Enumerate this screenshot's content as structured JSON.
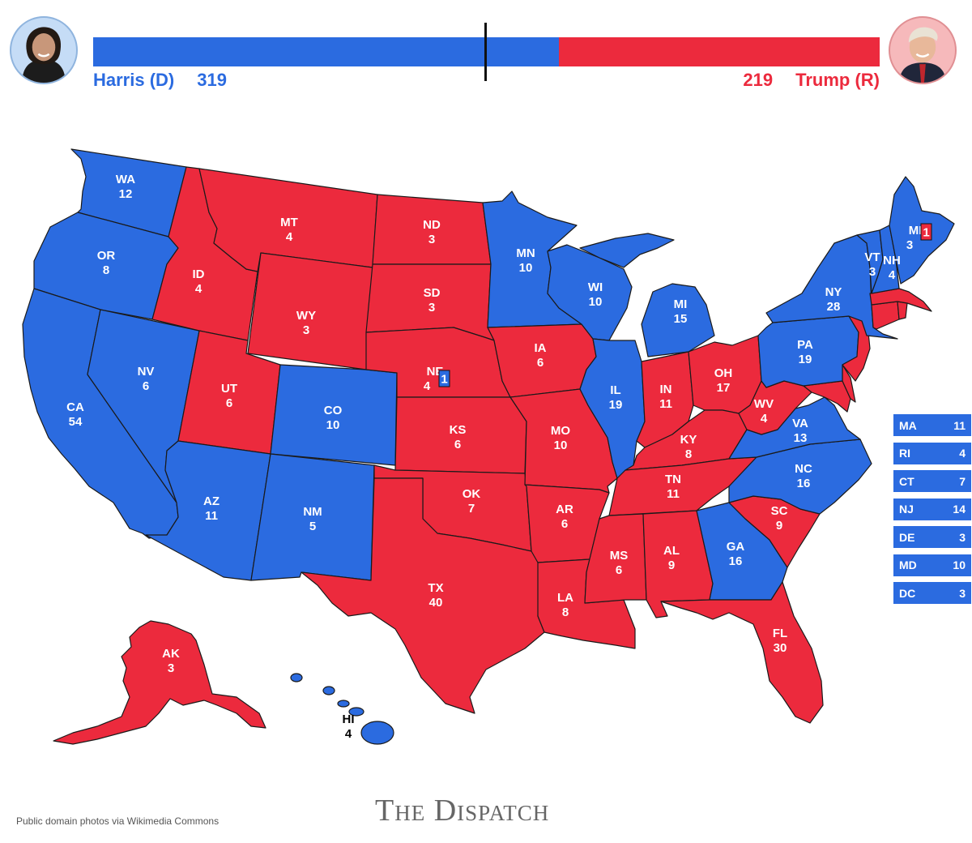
{
  "colors": {
    "dem": "#2b6be0",
    "rep": "#ec2a3d",
    "border": "#1a1a1a"
  },
  "header": {
    "dem": {
      "name": "Harris (D)",
      "votes": "319"
    },
    "rep": {
      "name": "Trump (R)",
      "votes": "219"
    },
    "dem_share": 0.593,
    "threshold_votes": 270
  },
  "states": {
    "WA": {
      "abbr": "WA",
      "ev": "12",
      "party": "D"
    },
    "OR": {
      "abbr": "OR",
      "ev": "8",
      "party": "D"
    },
    "CA": {
      "abbr": "CA",
      "ev": "54",
      "party": "D"
    },
    "NV": {
      "abbr": "NV",
      "ev": "6",
      "party": "D"
    },
    "ID": {
      "abbr": "ID",
      "ev": "4",
      "party": "R"
    },
    "MT": {
      "abbr": "MT",
      "ev": "4",
      "party": "R"
    },
    "WY": {
      "abbr": "WY",
      "ev": "3",
      "party": "R"
    },
    "UT": {
      "abbr": "UT",
      "ev": "6",
      "party": "R"
    },
    "CO": {
      "abbr": "CO",
      "ev": "10",
      "party": "D"
    },
    "AZ": {
      "abbr": "AZ",
      "ev": "11",
      "party": "D"
    },
    "NM": {
      "abbr": "NM",
      "ev": "5",
      "party": "D"
    },
    "ND": {
      "abbr": "ND",
      "ev": "3",
      "party": "R"
    },
    "SD": {
      "abbr": "SD",
      "ev": "3",
      "party": "R"
    },
    "NE": {
      "abbr": "NE",
      "ev": "4",
      "party": "R",
      "split": "1"
    },
    "KS": {
      "abbr": "KS",
      "ev": "6",
      "party": "R"
    },
    "OK": {
      "abbr": "OK",
      "ev": "7",
      "party": "R"
    },
    "TX": {
      "abbr": "TX",
      "ev": "40",
      "party": "R"
    },
    "MN": {
      "abbr": "MN",
      "ev": "10",
      "party": "D"
    },
    "IA": {
      "abbr": "IA",
      "ev": "6",
      "party": "R"
    },
    "MO": {
      "abbr": "MO",
      "ev": "10",
      "party": "R"
    },
    "AR": {
      "abbr": "AR",
      "ev": "6",
      "party": "R"
    },
    "LA": {
      "abbr": "LA",
      "ev": "8",
      "party": "R"
    },
    "WI": {
      "abbr": "WI",
      "ev": "10",
      "party": "D"
    },
    "IL": {
      "abbr": "IL",
      "ev": "19",
      "party": "D"
    },
    "MI": {
      "abbr": "MI",
      "ev": "15",
      "party": "D"
    },
    "IN": {
      "abbr": "IN",
      "ev": "11",
      "party": "R"
    },
    "OH": {
      "abbr": "OH",
      "ev": "17",
      "party": "R"
    },
    "KY": {
      "abbr": "KY",
      "ev": "8",
      "party": "R"
    },
    "TN": {
      "abbr": "TN",
      "ev": "11",
      "party": "R"
    },
    "MS": {
      "abbr": "MS",
      "ev": "6",
      "party": "R"
    },
    "AL": {
      "abbr": "AL",
      "ev": "9",
      "party": "R"
    },
    "GA": {
      "abbr": "GA",
      "ev": "16",
      "party": "D"
    },
    "FL": {
      "abbr": "FL",
      "ev": "30",
      "party": "R"
    },
    "SC": {
      "abbr": "SC",
      "ev": "9",
      "party": "R"
    },
    "NC": {
      "abbr": "NC",
      "ev": "16",
      "party": "D"
    },
    "VA": {
      "abbr": "VA",
      "ev": "13",
      "party": "D"
    },
    "WV": {
      "abbr": "WV",
      "ev": "4",
      "party": "R"
    },
    "PA": {
      "abbr": "PA",
      "ev": "19",
      "party": "D"
    },
    "NY": {
      "abbr": "NY",
      "ev": "28",
      "party": "D"
    },
    "VT": {
      "abbr": "VT",
      "ev": "3",
      "party": "D"
    },
    "NH": {
      "abbr": "NH",
      "ev": "4",
      "party": "D"
    },
    "ME": {
      "abbr": "ME",
      "ev": "3",
      "party": "D",
      "split": "1"
    },
    "AK": {
      "abbr": "AK",
      "ev": "3",
      "party": "R"
    },
    "HI": {
      "abbr": "HI",
      "ev": "4",
      "party": "D"
    }
  },
  "small_states": [
    {
      "abbr": "MA",
      "ev": "11"
    },
    {
      "abbr": "RI",
      "ev": "4"
    },
    {
      "abbr": "CT",
      "ev": "7"
    },
    {
      "abbr": "NJ",
      "ev": "14"
    },
    {
      "abbr": "DE",
      "ev": "3"
    },
    {
      "abbr": "MD",
      "ev": "10"
    },
    {
      "abbr": "DC",
      "ev": "3"
    }
  ],
  "footer": {
    "credit": "Public domain photos via Wikimedia Commons",
    "logo": "The Dispatch"
  }
}
